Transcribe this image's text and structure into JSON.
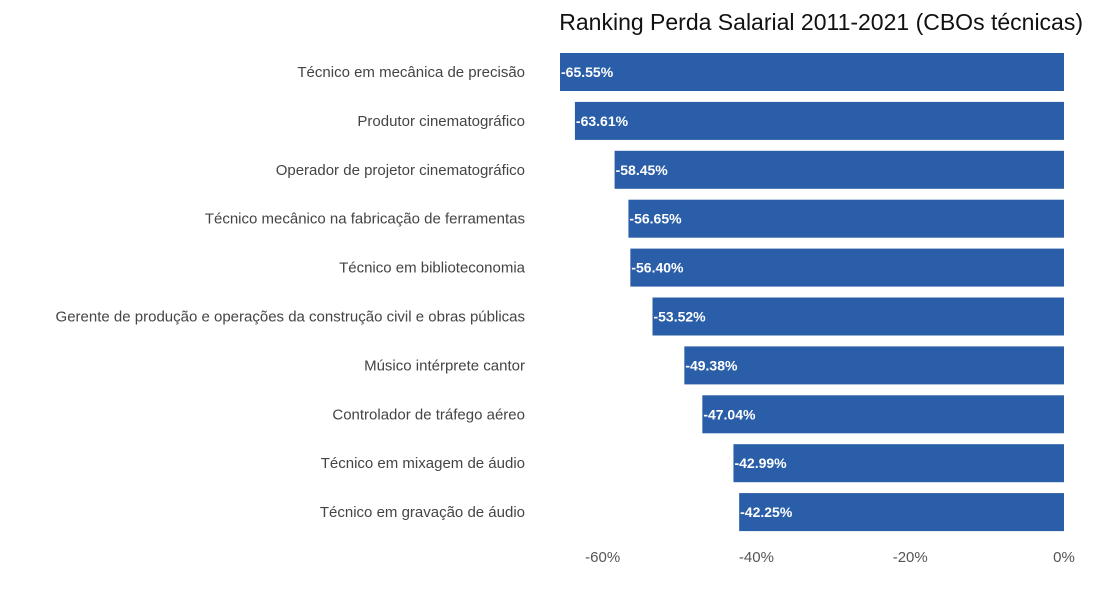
{
  "chart_data": {
    "type": "bar",
    "orientation": "horizontal",
    "title": "Ranking Perda Salarial 2011-2021 (CBOs técnicas)",
    "xlabel": "",
    "ylabel": "",
    "xlim": [
      -65.55,
      0
    ],
    "grid": false,
    "legend": "none",
    "bar_color": "#2a5ea8",
    "categories": [
      "Técnico em mecânica de precisão",
      "Produtor cinematográfico",
      "Operador de projetor cinematográfico",
      "Técnico mecânico na fabricação de ferramentas",
      "Técnico em biblioteconomia",
      "Gerente de produção e operações da construção civil e obras públicas",
      "Músico intérprete cantor",
      "Controlador de tráfego aéreo",
      "Técnico em mixagem de áudio",
      "Técnico em gravação de áudio"
    ],
    "values": [
      -65.55,
      -63.61,
      -58.45,
      -56.65,
      -56.4,
      -53.52,
      -49.38,
      -47.04,
      -42.99,
      -42.25
    ],
    "value_labels": [
      "-65.55%",
      "-63.61%",
      "-58.45%",
      "-56.65%",
      "-56.40%",
      "-53.52%",
      "-49.38%",
      "-47.04%",
      "-42.99%",
      "-42.25%"
    ],
    "x_ticks": [
      -60,
      -40,
      -20,
      0
    ],
    "x_tick_labels": [
      "-60%",
      "-40%",
      "-20%",
      "0%"
    ]
  }
}
